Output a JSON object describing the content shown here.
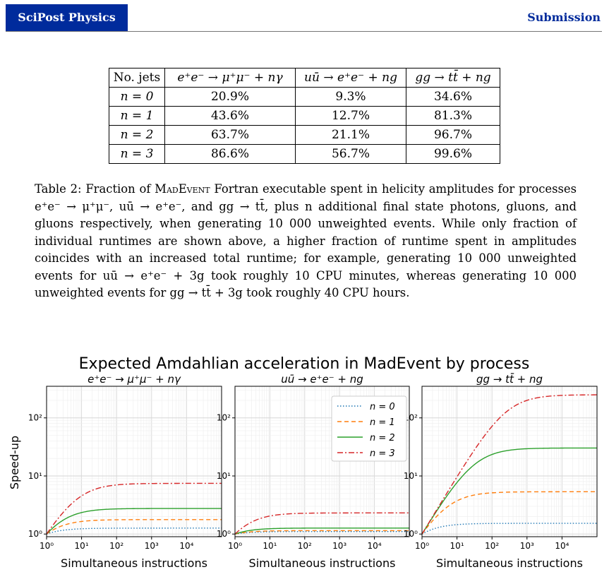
{
  "header": {
    "journal": "SciPost Physics",
    "label": "Submission"
  },
  "table": {
    "headers": [
      "No. jets",
      "e⁺e⁻ → μ⁺μ⁻ + nγ",
      "uū → e⁺e⁻ + ng",
      "gg → tt̄ + ng"
    ],
    "rows": [
      {
        "n": "n = 0",
        "values": [
          "20.9%",
          "9.3%",
          "34.6%"
        ]
      },
      {
        "n": "n = 1",
        "values": [
          "43.6%",
          "12.7%",
          "81.3%"
        ]
      },
      {
        "n": "n = 2",
        "values": [
          "63.7%",
          "21.1%",
          "96.7%"
        ]
      },
      {
        "n": "n = 3",
        "values": [
          "86.6%",
          "56.7%",
          "99.6%"
        ]
      }
    ]
  },
  "caption": {
    "label": "Table 2:",
    "text_1": "Fraction of",
    "madevent": "MadEvent",
    "text_2": "Fortran executable spent in helicity amplitudes for processes e⁺e⁻ → μ⁺μ⁻, uū → e⁺e⁻, and gg → tt̄, plus n additional final state photons, gluons, and gluons respectively, when generating 10 000 unweighted events. While only fraction of individual runtimes are shown above, a higher fraction of runtime spent in amplitudes coincides with an increased total runtime; for example, generating 10 000 unweighted events for uū → e⁺e⁻ + 3g took roughly 10 CPU minutes, whereas generating 10 000 unweighted events for gg → tt̄ + 3g took roughly 40 CPU hours."
  },
  "chart_data": {
    "type": "line",
    "title": "Expected Amdahlian acceleration in MadEvent by process",
    "ylabel": "Speed-up",
    "xlabel": "Simultaneous instructions",
    "xscale": "log",
    "yscale": "log",
    "xlim": [
      1,
      100000
    ],
    "ylim": [
      0.9,
      350
    ],
    "x_ticks": [
      "10⁰",
      "10¹",
      "10²",
      "10³",
      "10⁴"
    ],
    "y_ticks": [
      "10⁰",
      "10¹",
      "10²"
    ],
    "grid": true,
    "legend_position": "upper-right of middle panel",
    "legend": [
      {
        "label": "n = 0",
        "color": "#1f77b4",
        "style": "dotted"
      },
      {
        "label": "n = 1",
        "color": "#ff7f0e",
        "style": "dashed"
      },
      {
        "label": "n = 2",
        "color": "#2ca02c",
        "style": "solid"
      },
      {
        "label": "n = 3",
        "color": "#d62728",
        "style": "dashdot"
      }
    ],
    "panels": [
      {
        "title": "e⁺e⁻ → μ⁺μ⁻ + nγ",
        "fractions": [
          0.209,
          0.436,
          0.637,
          0.866
        ]
      },
      {
        "title": "uū → e⁺e⁻ + ng",
        "fractions": [
          0.093,
          0.127,
          0.211,
          0.567
        ]
      },
      {
        "title": "gg → tt̄ + ng",
        "fractions": [
          0.346,
          0.813,
          0.967,
          0.996
        ]
      }
    ]
  }
}
